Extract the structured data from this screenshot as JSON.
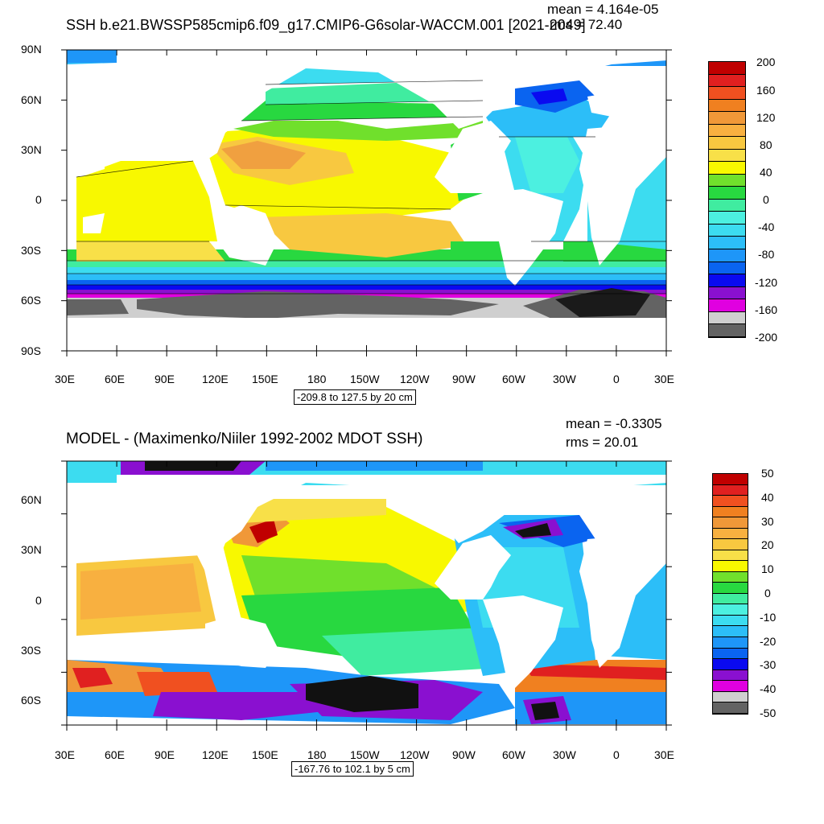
{
  "panels": [
    {
      "title": "SSH b.e21.BWSSP585cmip6.f09_g17.CMIP6-G6solar-WACCM.001 [2021-2049]",
      "mean": "mean = 4.164e-05",
      "rms": "rms = 72.40",
      "range_label": "-209.8 to 127.5 by 20 cm",
      "lon_labels": [
        "30E",
        "60E",
        "90E",
        "120E",
        "150E",
        "180",
        "150W",
        "120W",
        "90W",
        "60W",
        "30W",
        "0",
        "30E"
      ],
      "lat_labels": [
        "90N",
        "60N",
        "30N",
        "0",
        "30S",
        "60S",
        "90S"
      ],
      "colorbar_labels": [
        "200",
        "160",
        "120",
        "80",
        "40",
        "0",
        "-40",
        "-80",
        "-120",
        "-160",
        "-200"
      ]
    },
    {
      "title": "MODEL - (Maximenko/Niiler 1992-2002 MDOT SSH)",
      "mean": "mean = -0.3305",
      "rms": "rms = 20.01",
      "range_label": "-167.76 to 102.1 by 5 cm",
      "lon_labels": [
        "30E",
        "60E",
        "90E",
        "120E",
        "150E",
        "180",
        "150W",
        "120W",
        "90W",
        "60W",
        "30W",
        "0",
        "30E"
      ],
      "lat_labels": [
        "60N",
        "30N",
        "0",
        "30S",
        "60S"
      ],
      "colorbar_labels": [
        "50",
        "40",
        "30",
        "20",
        "10",
        "0",
        "-10",
        "-20",
        "-30",
        "-40",
        "-50"
      ]
    }
  ],
  "colors": {
    "palette": [
      "#636363",
      "#cfcfcf",
      "#e000e0",
      "#8a10d0",
      "#0a0af0",
      "#0a64f0",
      "#1e96f8",
      "#2cbef8",
      "#3cdcf0",
      "#4cf0e0",
      "#40eca0",
      "#28d840",
      "#70e02c",
      "#f8f800",
      "#f8e048",
      "#f8c840",
      "#f8b040",
      "#f09838",
      "#f08020",
      "#f05020",
      "#e02020",
      "#c00000"
    ]
  }
}
